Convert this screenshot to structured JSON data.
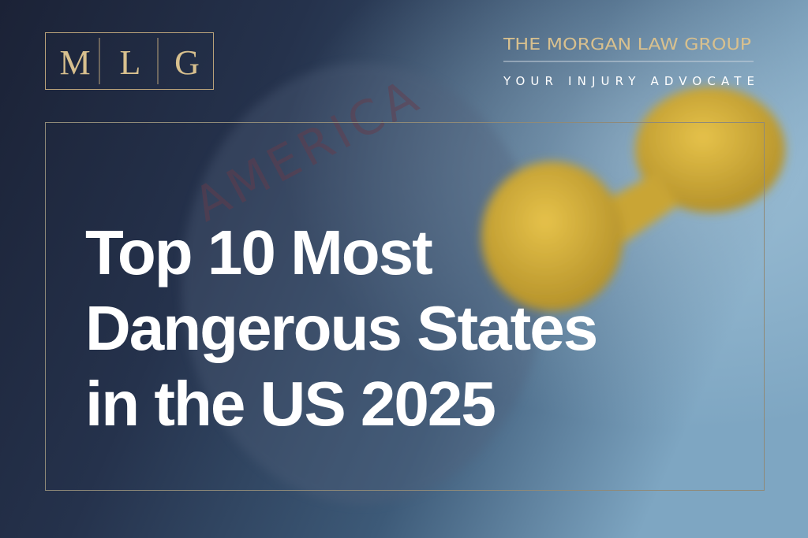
{
  "logo": {
    "letters": [
      "M",
      "L",
      "G"
    ]
  },
  "brand": {
    "name": "THE MORGAN LAW GROUP",
    "tagline": "YOUR INJURY ADVOCATE"
  },
  "headline": {
    "lines": [
      "Top 10 Most",
      "Dangerous States",
      "in the US 2025"
    ]
  },
  "background": {
    "map_label": "AMERICA"
  }
}
